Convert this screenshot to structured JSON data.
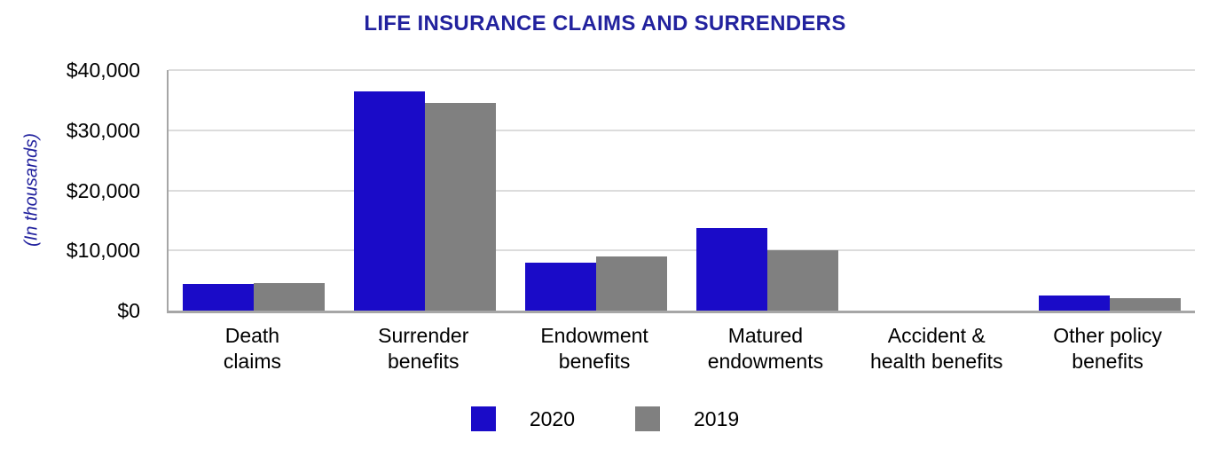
{
  "chart_data": {
    "type": "bar",
    "title": "LIFE INSURANCE CLAIMS AND SURRENDERS",
    "ylabel": "(In thousands)",
    "xlabel": "",
    "ylim": [
      0,
      40000
    ],
    "grid": true,
    "legend_position": "bottom",
    "title_color": "#22229E",
    "ylabel_color": "#22229E",
    "gridline_color": "#DCDCDC",
    "axis_color": "#A6A6A6",
    "yticks": [
      {
        "value": 40000,
        "label": "$40,000"
      },
      {
        "value": 30000,
        "label": "$30,000"
      },
      {
        "value": 20000,
        "label": "$20,000"
      },
      {
        "value": 10000,
        "label": "$10,000"
      },
      {
        "value": 0,
        "label": "$0"
      }
    ],
    "categories": [
      "Death claims",
      "Surrender benefits",
      "Endowment benefits",
      "Matured endowments",
      "Accident & health benefits",
      "Other policy benefits"
    ],
    "category_lines": [
      [
        "Death",
        "claims"
      ],
      [
        "Surrender",
        "benefits"
      ],
      [
        "Endowment",
        "benefits"
      ],
      [
        "Matured",
        "endowments"
      ],
      [
        "Accident &",
        "health benefits"
      ],
      [
        "Other policy",
        "benefits"
      ]
    ],
    "series": [
      {
        "name": "2020",
        "color": "#1A0BC8",
        "values": [
          4400,
          36500,
          7900,
          13800,
          0,
          2500
        ]
      },
      {
        "name": "2019",
        "color": "#808080",
        "values": [
          4600,
          34500,
          9000,
          10000,
          0,
          2100
        ]
      }
    ]
  }
}
